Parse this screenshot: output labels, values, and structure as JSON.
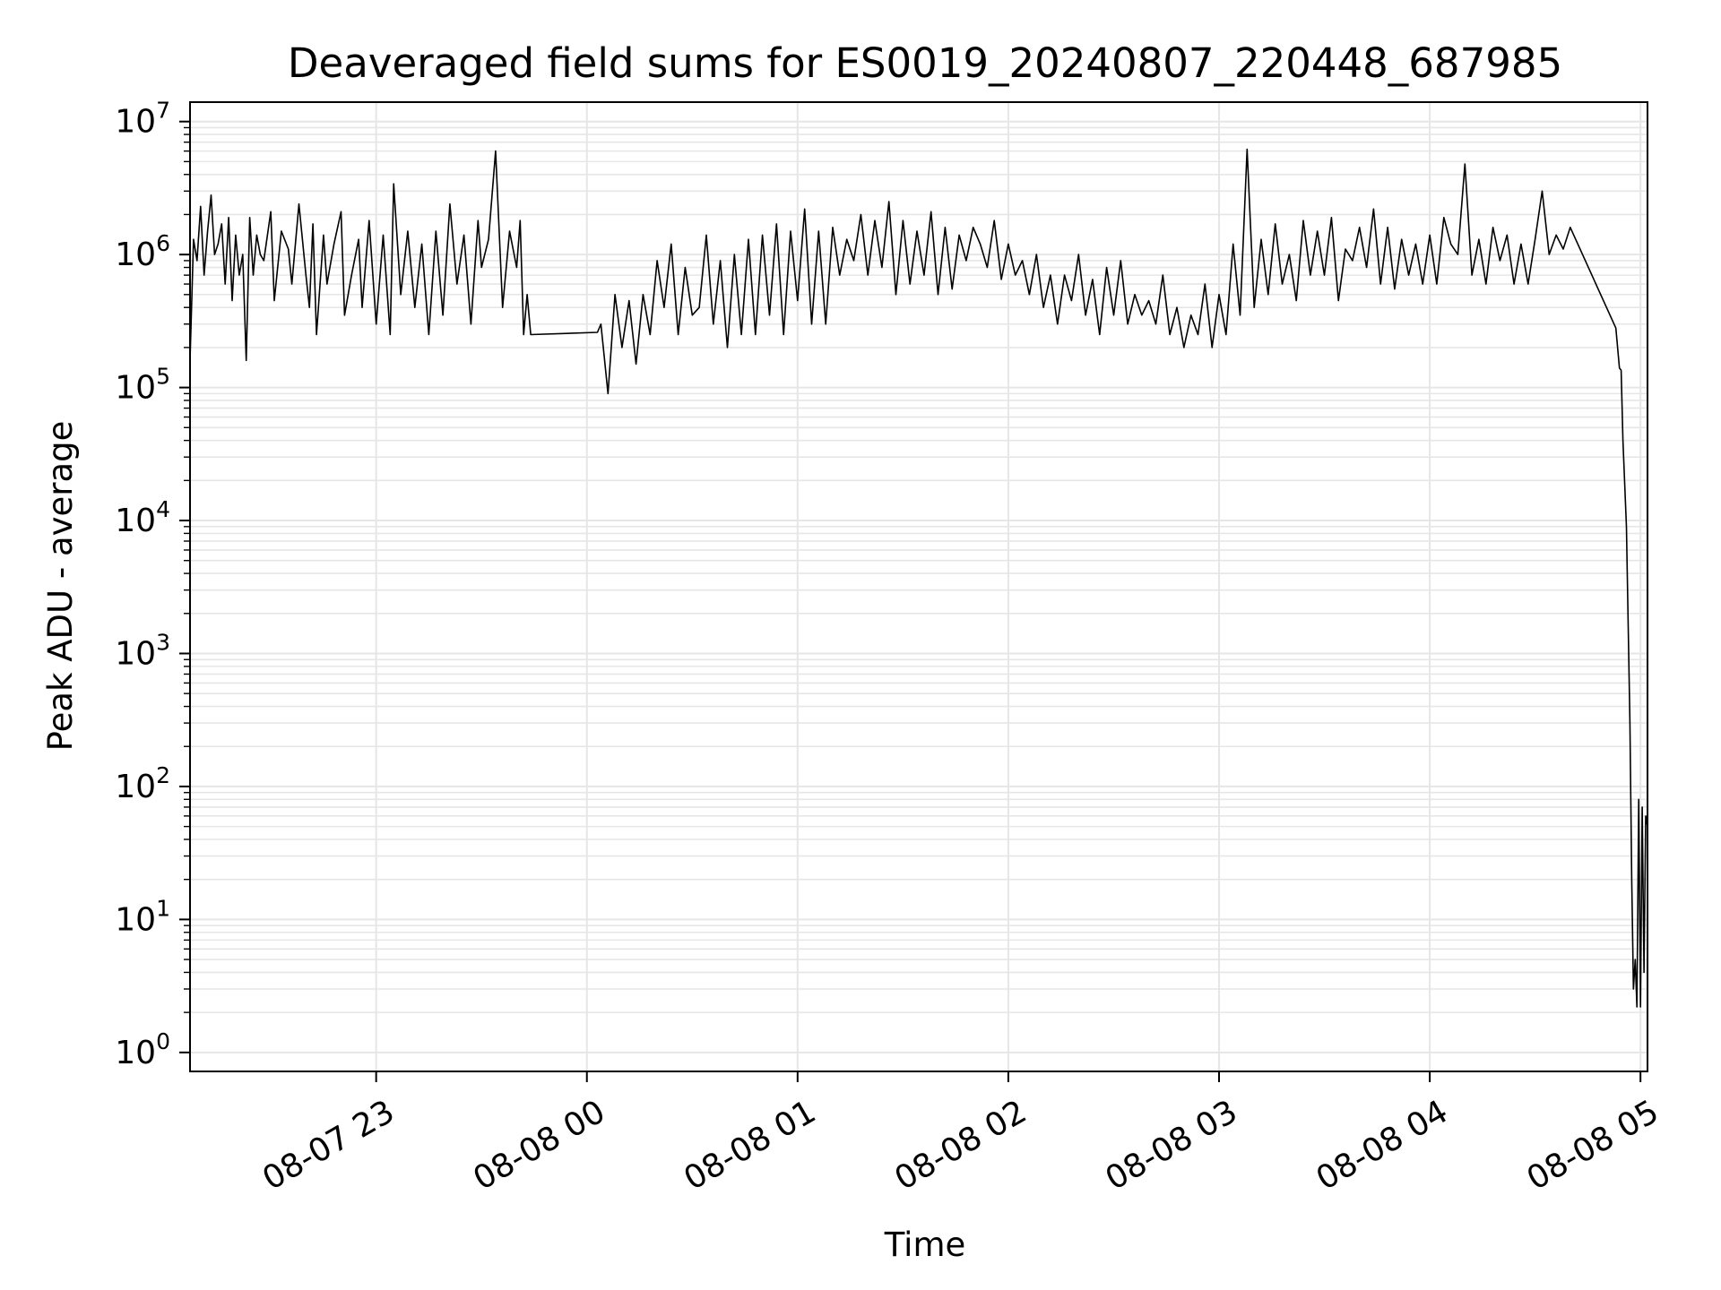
{
  "chart_data": {
    "type": "line",
    "title": "Deaveraged field sums for ES0019_20240807_220448_687985",
    "xlabel": "Time",
    "ylabel": "Peak ADU - average",
    "yscale": "log",
    "ylim": [
      0.72,
      14000000
    ],
    "xlim": [
      "2024-08-07 22:07:00",
      "2024-08-08 05:02:00"
    ],
    "grid": true,
    "line_color": "#000000",
    "grid_color": "#e6e6e6",
    "x_ticks": [
      {
        "label": "08-07 23",
        "value": "2024-08-07 23:00:00"
      },
      {
        "label": "08-08 00",
        "value": "2024-08-08 00:00:00"
      },
      {
        "label": "08-08 01",
        "value": "2024-08-08 01:00:00"
      },
      {
        "label": "08-08 02",
        "value": "2024-08-08 02:00:00"
      },
      {
        "label": "08-08 03",
        "value": "2024-08-08 03:00:00"
      },
      {
        "label": "08-08 04",
        "value": "2024-08-08 04:00:00"
      },
      {
        "label": "08-08 05",
        "value": "2024-08-08 05:00:00"
      }
    ],
    "y_ticks": [
      {
        "base": "10",
        "exp": "0",
        "value": 1
      },
      {
        "base": "10",
        "exp": "1",
        "value": 10
      },
      {
        "base": "10",
        "exp": "2",
        "value": 100
      },
      {
        "base": "10",
        "exp": "3",
        "value": 1000
      },
      {
        "base": "10",
        "exp": "4",
        "value": 10000
      },
      {
        "base": "10",
        "exp": "5",
        "value": 100000
      },
      {
        "base": "10",
        "exp": "6",
        "value": 1000000
      },
      {
        "base": "10",
        "exp": "7",
        "value": 10000000
      }
    ],
    "series": [
      {
        "x": [
          "2024-08-07 22:07:00",
          "2024-08-07 22:08:00",
          "2024-08-07 22:09:00",
          "2024-08-07 22:10:00",
          "2024-08-07 22:11:00",
          "2024-08-07 22:12:00",
          "2024-08-07 22:13:00",
          "2024-08-07 22:14:00",
          "2024-08-07 22:15:00",
          "2024-08-07 22:16:00",
          "2024-08-07 22:17:00",
          "2024-08-07 22:18:00",
          "2024-08-07 22:19:00",
          "2024-08-07 22:20:00",
          "2024-08-07 22:21:00",
          "2024-08-07 22:22:00",
          "2024-08-07 22:23:00",
          "2024-08-07 22:24:00",
          "2024-08-07 22:25:00",
          "2024-08-07 22:26:00",
          "2024-08-07 22:27:00",
          "2024-08-07 22:28:00",
          "2024-08-07 22:30:00",
          "2024-08-07 22:31:00",
          "2024-08-07 22:33:00",
          "2024-08-07 22:35:00",
          "2024-08-07 22:36:00",
          "2024-08-07 22:38:00",
          "2024-08-07 22:40:00",
          "2024-08-07 22:41:00",
          "2024-08-07 22:42:00",
          "2024-08-07 22:43:00",
          "2024-08-07 22:45:00",
          "2024-08-07 22:46:00",
          "2024-08-07 22:48:00",
          "2024-08-07 22:50:00",
          "2024-08-07 22:51:00",
          "2024-08-07 22:53:00",
          "2024-08-07 22:55:00",
          "2024-08-07 22:56:00",
          "2024-08-07 22:58:00",
          "2024-08-07 23:00:00",
          "2024-08-07 23:02:00",
          "2024-08-07 23:04:00",
          "2024-08-07 23:05:00",
          "2024-08-07 23:07:00",
          "2024-08-07 23:09:00",
          "2024-08-07 23:11:00",
          "2024-08-07 23:13:00",
          "2024-08-07 23:15:00",
          "2024-08-07 23:17:00",
          "2024-08-07 23:19:00",
          "2024-08-07 23:21:00",
          "2024-08-07 23:23:00",
          "2024-08-07 23:25:00",
          "2024-08-07 23:27:00",
          "2024-08-07 23:29:00",
          "2024-08-07 23:30:00",
          "2024-08-07 23:32:00",
          "2024-08-07 23:34:00",
          "2024-08-07 23:36:00",
          "2024-08-07 23:38:00",
          "2024-08-07 23:40:00",
          "2024-08-07 23:41:00",
          "2024-08-07 23:42:00",
          "2024-08-07 23:43:00",
          "2024-08-07 23:44:00",
          "2024-08-08 00:03:00",
          "2024-08-08 00:04:00",
          "2024-08-08 00:06:00",
          "2024-08-08 00:08:00",
          "2024-08-08 00:10:00",
          "2024-08-08 00:12:00",
          "2024-08-08 00:14:00",
          "2024-08-08 00:16:00",
          "2024-08-08 00:18:00",
          "2024-08-08 00:20:00",
          "2024-08-08 00:22:00",
          "2024-08-08 00:24:00",
          "2024-08-08 00:26:00",
          "2024-08-08 00:28:00",
          "2024-08-08 00:30:00",
          "2024-08-08 00:32:00",
          "2024-08-08 00:34:00",
          "2024-08-08 00:36:00",
          "2024-08-08 00:38:00",
          "2024-08-08 00:40:00",
          "2024-08-08 00:42:00",
          "2024-08-08 00:44:00",
          "2024-08-08 00:46:00",
          "2024-08-08 00:48:00",
          "2024-08-08 00:50:00",
          "2024-08-08 00:52:00",
          "2024-08-08 00:54:00",
          "2024-08-08 00:56:00",
          "2024-08-08 00:58:00",
          "2024-08-08 01:00:00",
          "2024-08-08 01:02:00",
          "2024-08-08 01:04:00",
          "2024-08-08 01:06:00",
          "2024-08-08 01:08:00",
          "2024-08-08 01:10:00",
          "2024-08-08 01:12:00",
          "2024-08-08 01:14:00",
          "2024-08-08 01:16:00",
          "2024-08-08 01:18:00",
          "2024-08-08 01:20:00",
          "2024-08-08 01:22:00",
          "2024-08-08 01:24:00",
          "2024-08-08 01:26:00",
          "2024-08-08 01:28:00",
          "2024-08-08 01:30:00",
          "2024-08-08 01:32:00",
          "2024-08-08 01:34:00",
          "2024-08-08 01:36:00",
          "2024-08-08 01:38:00",
          "2024-08-08 01:40:00",
          "2024-08-08 01:42:00",
          "2024-08-08 01:44:00",
          "2024-08-08 01:46:00",
          "2024-08-08 01:48:00",
          "2024-08-08 01:50:00",
          "2024-08-08 01:52:00",
          "2024-08-08 01:54:00",
          "2024-08-08 01:56:00",
          "2024-08-08 01:58:00",
          "2024-08-08 02:00:00",
          "2024-08-08 02:02:00",
          "2024-08-08 02:04:00",
          "2024-08-08 02:06:00",
          "2024-08-08 02:08:00",
          "2024-08-08 02:10:00",
          "2024-08-08 02:12:00",
          "2024-08-08 02:14:00",
          "2024-08-08 02:16:00",
          "2024-08-08 02:18:00",
          "2024-08-08 02:20:00",
          "2024-08-08 02:22:00",
          "2024-08-08 02:24:00",
          "2024-08-08 02:26:00",
          "2024-08-08 02:28:00",
          "2024-08-08 02:30:00",
          "2024-08-08 02:32:00",
          "2024-08-08 02:34:00",
          "2024-08-08 02:36:00",
          "2024-08-08 02:38:00",
          "2024-08-08 02:40:00",
          "2024-08-08 02:42:00",
          "2024-08-08 02:44:00",
          "2024-08-08 02:46:00",
          "2024-08-08 02:48:00",
          "2024-08-08 02:50:00",
          "2024-08-08 02:52:00",
          "2024-08-08 02:54:00",
          "2024-08-08 02:56:00",
          "2024-08-08 02:58:00",
          "2024-08-08 03:00:00",
          "2024-08-08 03:02:00",
          "2024-08-08 03:04:00",
          "2024-08-08 03:06:00",
          "2024-08-08 03:08:00",
          "2024-08-08 03:10:00",
          "2024-08-08 03:12:00",
          "2024-08-08 03:14:00",
          "2024-08-08 03:16:00",
          "2024-08-08 03:18:00",
          "2024-08-08 03:20:00",
          "2024-08-08 03:22:00",
          "2024-08-08 03:24:00",
          "2024-08-08 03:26:00",
          "2024-08-08 03:28:00",
          "2024-08-08 03:30:00",
          "2024-08-08 03:32:00",
          "2024-08-08 03:34:00",
          "2024-08-08 03:36:00",
          "2024-08-08 03:38:00",
          "2024-08-08 03:40:00",
          "2024-08-08 03:42:00",
          "2024-08-08 03:44:00",
          "2024-08-08 03:46:00",
          "2024-08-08 03:48:00",
          "2024-08-08 03:50:00",
          "2024-08-08 03:52:00",
          "2024-08-08 03:54:00",
          "2024-08-08 03:56:00",
          "2024-08-08 03:58:00",
          "2024-08-08 04:00:00",
          "2024-08-08 04:02:00",
          "2024-08-08 04:04:00",
          "2024-08-08 04:06:00",
          "2024-08-08 04:08:00",
          "2024-08-08 04:10:00",
          "2024-08-08 04:12:00",
          "2024-08-08 04:14:00",
          "2024-08-08 04:16:00",
          "2024-08-08 04:18:00",
          "2024-08-08 04:20:00",
          "2024-08-08 04:22:00",
          "2024-08-08 04:24:00",
          "2024-08-08 04:26:00",
          "2024-08-08 04:28:00",
          "2024-08-08 04:30:00",
          "2024-08-08 04:32:00",
          "2024-08-08 04:34:00",
          "2024-08-08 04:36:00",
          "2024-08-08 04:38:00",
          "2024-08-08 04:40:00",
          "2024-08-08 04:53:00",
          "2024-08-08 04:54:00",
          "2024-08-08 04:54:30",
          "2024-08-08 04:55:00",
          "2024-08-08 04:56:00",
          "2024-08-08 04:57:00",
          "2024-08-08 04:57:30",
          "2024-08-08 04:58:00",
          "2024-08-08 04:58:30",
          "2024-08-08 04:59:00",
          "2024-08-08 04:59:30",
          "2024-08-08 05:00:00",
          "2024-08-08 05:00:30",
          "2024-08-08 05:01:00",
          "2024-08-08 05:01:30",
          "2024-08-08 05:02:00"
        ],
        "y": [
          160000,
          1300000,
          900000,
          2300000,
          700000,
          1500000,
          2800000,
          1000000,
          1200000,
          1700000,
          600000,
          1900000,
          450000,
          1400000,
          700000,
          1000000,
          160000,
          1900000,
          700000,
          1400000,
          1000000,
          900000,
          2100000,
          450000,
          1500000,
          1100000,
          600000,
          2400000,
          700000,
          400000,
          1700000,
          250000,
          1400000,
          600000,
          1200000,
          2100000,
          350000,
          700000,
          1300000,
          400000,
          1800000,
          300000,
          1400000,
          250000,
          3400000,
          500000,
          1500000,
          400000,
          1200000,
          250000,
          1500000,
          350000,
          2400000,
          600000,
          1400000,
          300000,
          1800000,
          800000,
          1300000,
          6000000,
          400000,
          1500000,
          800000,
          1800000,
          250000,
          500000,
          250000,
          260000,
          300000,
          90000,
          500000,
          200000,
          450000,
          150000,
          500000,
          250000,
          900000,
          400000,
          1200000,
          250000,
          800000,
          350000,
          400000,
          1400000,
          300000,
          900000,
          200000,
          1000000,
          250000,
          1300000,
          250000,
          1400000,
          350000,
          1700000,
          250000,
          1500000,
          450000,
          2200000,
          300000,
          1500000,
          300000,
          1600000,
          700000,
          1300000,
          900000,
          2000000,
          700000,
          1800000,
          800000,
          2500000,
          500000,
          1800000,
          600000,
          1500000,
          700000,
          2100000,
          500000,
          1600000,
          550000,
          1400000,
          900000,
          1600000,
          1200000,
          800000,
          1800000,
          650000,
          1200000,
          700000,
          900000,
          500000,
          1000000,
          400000,
          700000,
          300000,
          700000,
          450000,
          1000000,
          350000,
          650000,
          250000,
          800000,
          350000,
          900000,
          300000,
          500000,
          350000,
          450000,
          300000,
          700000,
          250000,
          400000,
          200000,
          350000,
          250000,
          600000,
          200000,
          500000,
          250000,
          1200000,
          350000,
          6200000,
          400000,
          1300000,
          500000,
          1700000,
          600000,
          1000000,
          450000,
          1800000,
          700000,
          1500000,
          700000,
          1900000,
          450000,
          1100000,
          900000,
          1600000,
          800000,
          2200000,
          600000,
          1600000,
          550000,
          1300000,
          700000,
          1200000,
          600000,
          1400000,
          600000,
          1900000,
          1200000,
          1000000,
          4800000,
          700000,
          1300000,
          600000,
          1600000,
          900000,
          1400000,
          600000,
          1200000,
          600000,
          1300000,
          3000000,
          1000000,
          1400000,
          1100000,
          1600000,
          280000,
          140000,
          135000,
          40000,
          9000,
          300,
          20,
          3,
          5,
          2.2,
          80,
          2.2,
          70,
          4,
          60,
          50
        ]
      }
    ]
  }
}
